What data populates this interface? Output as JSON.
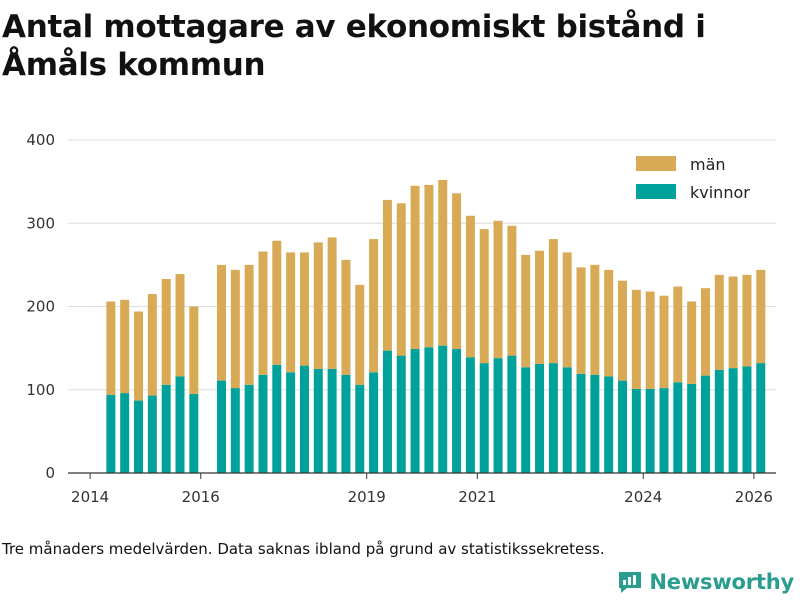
{
  "title": "Antal mottagare av ekonomiskt bistånd i Åmåls kommun",
  "footnote": "Tre månaders medelvärden. Data saknas ibland på grund av statistikssekretess.",
  "brand": "Newsworthy",
  "colors": {
    "man": "#d9aa55",
    "kvinnor": "#00a19a",
    "grid": "#dddddd",
    "axis": "#333333"
  },
  "chart_data": {
    "type": "bar",
    "stacked": true,
    "title": "Antal mottagare av ekonomiskt bistånd i Åmåls kommun",
    "xlabel": "",
    "ylabel": "",
    "ylim": [
      0,
      400
    ],
    "yticks": [
      0,
      100,
      200,
      300,
      400
    ],
    "xlim": [
      2013.6,
      2026.4
    ],
    "xticks": [
      2014,
      2016,
      2019,
      2021,
      2024,
      2026
    ],
    "grid": true,
    "legend_position": "top-right",
    "legend": [
      "män",
      "kvinnor"
    ],
    "x": [
      2014.375,
      2014.625,
      2014.875,
      2015.125,
      2015.375,
      2015.625,
      2015.875,
      2016.375,
      2016.625,
      2016.875,
      2017.125,
      2017.375,
      2017.625,
      2017.875,
      2018.125,
      2018.375,
      2018.625,
      2018.875,
      2019.125,
      2019.375,
      2019.625,
      2019.875,
      2020.125,
      2020.375,
      2020.625,
      2020.875,
      2021.125,
      2021.375,
      2021.625,
      2021.875,
      2022.125,
      2022.375,
      2022.625,
      2022.875,
      2023.125,
      2023.375,
      2023.625,
      2023.875,
      2024.125,
      2024.375,
      2024.625,
      2024.875,
      2025.125,
      2025.375,
      2025.625,
      2025.875,
      2026.125
    ],
    "series": [
      {
        "name": "kvinnor",
        "values": [
          94,
          96,
          87,
          93,
          106,
          116,
          95,
          111,
          102,
          106,
          118,
          130,
          121,
          129,
          125,
          125,
          118,
          106,
          121,
          147,
          141,
          149,
          151,
          153,
          149,
          139,
          132,
          138,
          141,
          127,
          131,
          132,
          127,
          119,
          118,
          116,
          111,
          101,
          101,
          102,
          109,
          107,
          117,
          124,
          126,
          128,
          132
        ]
      },
      {
        "name": "män",
        "values": [
          112,
          112,
          107,
          122,
          127,
          123,
          105,
          139,
          142,
          144,
          148,
          149,
          144,
          136,
          152,
          158,
          138,
          120,
          160,
          181,
          183,
          196,
          195,
          199,
          187,
          170,
          161,
          165,
          156,
          135,
          136,
          149,
          138,
          128,
          132,
          128,
          120,
          119,
          117,
          111,
          115,
          99,
          105,
          114,
          110,
          110,
          112
        ]
      }
    ]
  }
}
